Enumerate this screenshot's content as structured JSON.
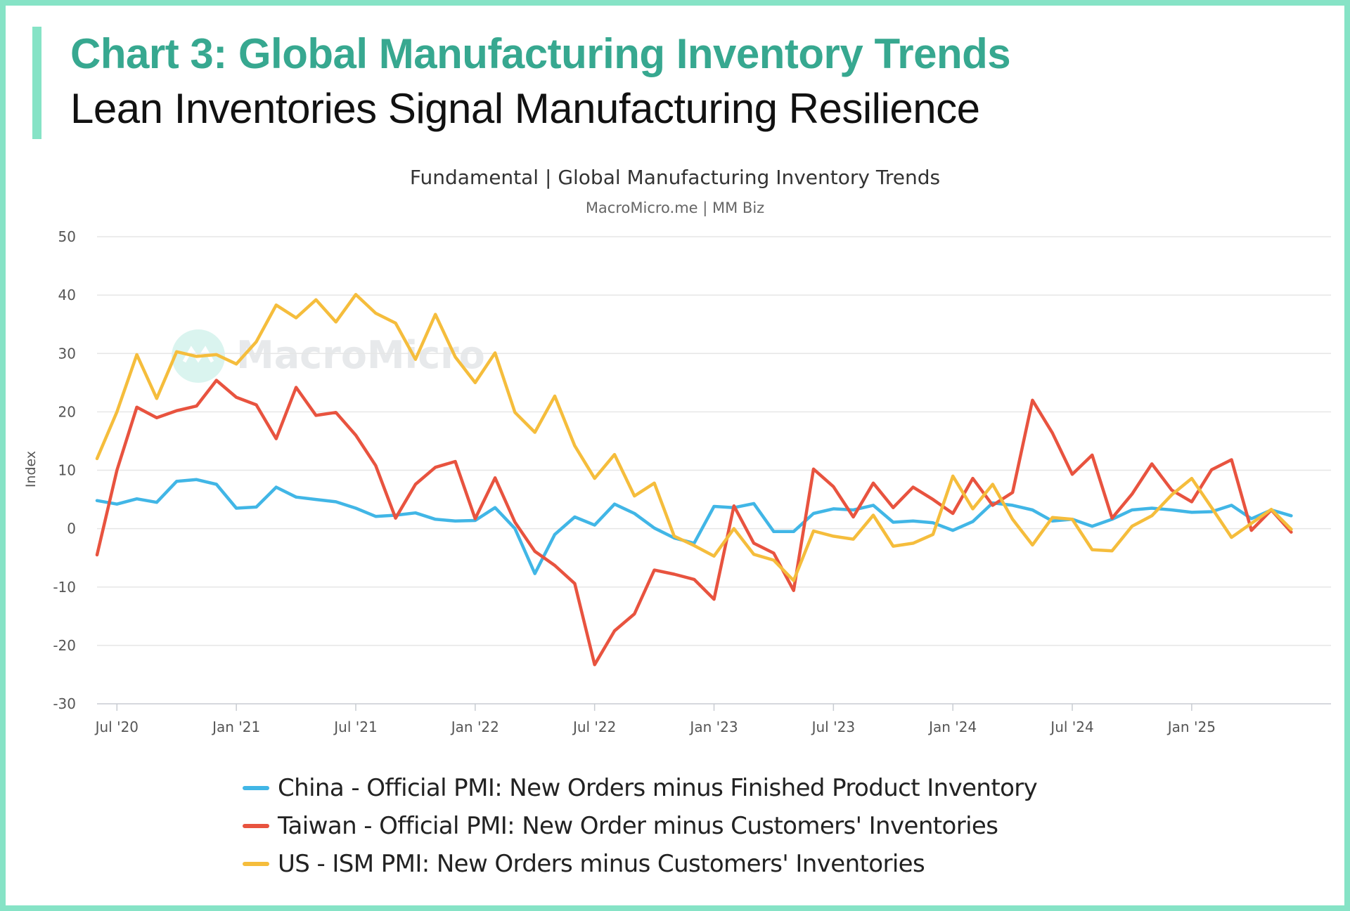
{
  "header": {
    "title": "Chart 3: Global Manufacturing Inventory Trends",
    "subtitle": "Lean Inventories Signal Manufacturing Resilience"
  },
  "watermark": "MacroMicro",
  "colors": {
    "accent": "#86e3c6",
    "title": "#37a890",
    "china": "#41b6e6",
    "taiwan": "#e8533f",
    "us": "#f5bd3c"
  },
  "chart_data": {
    "type": "line",
    "title": "Fundamental | Global Manufacturing Inventory Trends",
    "subtitle": "MacroMicro.me | MM Biz",
    "xlabel": "",
    "ylabel": "Index",
    "ylim": [
      -30,
      50
    ],
    "yticks": [
      50,
      40,
      30,
      20,
      10,
      0,
      -10,
      -20,
      -30
    ],
    "xlim_month_index": [
      5,
      67
    ],
    "xticks": [
      {
        "label": "Jul '20",
        "month": 6
      },
      {
        "label": "Jan '21",
        "month": 12
      },
      {
        "label": "Jul '21",
        "month": 18
      },
      {
        "label": "Jan '22",
        "month": 24
      },
      {
        "label": "Jul '22",
        "month": 30
      },
      {
        "label": "Jan '23",
        "month": 36
      },
      {
        "label": "Jul '23",
        "month": 42
      },
      {
        "label": "Jan '24",
        "month": 48
      },
      {
        "label": "Jul '24",
        "month": 54
      },
      {
        "label": "Jan '25",
        "month": 60
      }
    ],
    "x_start_month": 5,
    "series": [
      {
        "name": "China - Official PMI: New Orders minus Finished Product Inventory",
        "color": "#41b6e6",
        "values": [
          4.8,
          4.2,
          5.1,
          4.5,
          8.1,
          8.4,
          7.6,
          3.5,
          3.7,
          7.1,
          5.4,
          5.0,
          4.6,
          3.5,
          2.1,
          2.3,
          2.7,
          1.6,
          1.3,
          1.4,
          3.6,
          0.0,
          -7.7,
          -1.0,
          2.0,
          0.6,
          4.2,
          2.6,
          0.1,
          -1.6,
          -2.5,
          3.8,
          3.6,
          4.3,
          -0.5,
          -0.5,
          2.6,
          3.4,
          3.2,
          4.0,
          1.1,
          1.3,
          1.0,
          -0.3,
          1.2,
          4.4,
          4.0,
          3.2,
          1.3,
          1.6,
          0.4,
          1.6,
          3.2,
          3.5,
          3.2,
          2.8,
          2.9,
          4.0,
          1.7,
          3.2,
          2.2
        ]
      },
      {
        "name": "Taiwan - Official PMI: New Order minus Customers' Inventories",
        "color": "#e8533f",
        "values": [
          -4.5,
          10.0,
          20.8,
          19.0,
          20.2,
          21.0,
          25.4,
          22.5,
          21.2,
          15.4,
          24.2,
          19.4,
          19.9,
          16.0,
          10.8,
          1.8,
          7.6,
          10.5,
          11.5,
          1.7,
          8.7,
          1.1,
          -3.9,
          -6.3,
          -9.4,
          -23.3,
          -17.5,
          -14.6,
          -7.1,
          -7.8,
          -8.7,
          -12.1,
          3.9,
          -2.5,
          -4.2,
          -10.6,
          10.2,
          7.2,
          2.0,
          7.8,
          3.6,
          7.1,
          5.0,
          2.6,
          8.6,
          4.0,
          6.2,
          22.0,
          16.4,
          9.3,
          12.6,
          1.8,
          5.9,
          11.1,
          6.6,
          4.6,
          10.1,
          11.8,
          -0.3,
          3.2,
          -0.6
        ]
      },
      {
        "name": "US - ISM PMI: New Orders minus Customers' Inventories",
        "color": "#f5bd3c",
        "values": [
          12.0,
          20.0,
          29.8,
          22.3,
          30.3,
          29.5,
          29.8,
          28.2,
          32.0,
          38.3,
          36.1,
          39.2,
          35.4,
          40.1,
          36.9,
          35.2,
          29.0,
          36.7,
          29.4,
          25.0,
          30.1,
          19.9,
          16.5,
          22.7,
          14.2,
          8.6,
          12.7,
          5.6,
          7.8,
          -1.3,
          -2.9,
          -4.7,
          0.0,
          -4.4,
          -5.4,
          -8.9,
          -0.4,
          -1.3,
          -1.8,
          2.3,
          -3.0,
          -2.5,
          -1.0,
          9.0,
          3.4,
          7.6,
          1.6,
          -2.8,
          1.9,
          1.6,
          -3.6,
          -3.8,
          0.4,
          2.2,
          5.8,
          8.6,
          3.6,
          -1.5,
          0.9,
          3.3,
          -0.1
        ]
      }
    ]
  }
}
